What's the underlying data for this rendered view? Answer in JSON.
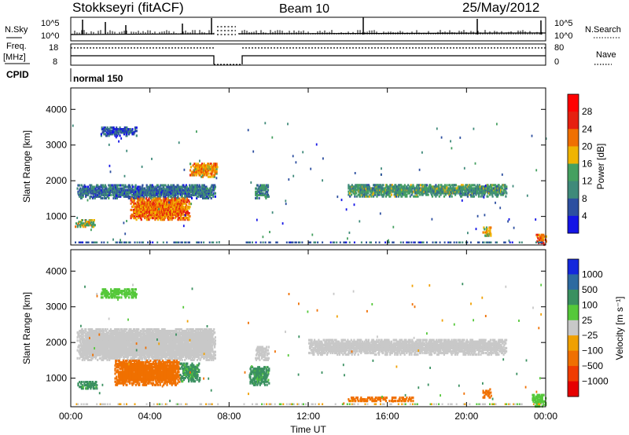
{
  "header": {
    "station": "Stokkseyri (fitACF)",
    "beam": "Beam 10",
    "date": "25/May/2012"
  },
  "strip": {
    "nsky_label": "N.Sky",
    "nsky_top_tick": "10^5",
    "nsky_bot_tick": "10^0",
    "nsearch_label": "N.Search",
    "freq_label": "Freq.",
    "freq_unit": "[MHz]",
    "freq_top_tick": "18",
    "freq_bot_tick": "8",
    "nave_label": "Nave",
    "nave_top_tick": "80",
    "nave_bot_tick": "0",
    "cpid_label": "CPID",
    "cpid_value": "normal 150"
  },
  "axes": {
    "xlabel": "Time UT",
    "x_ticks": [
      "00:00",
      "04:00",
      "08:00",
      "12:00",
      "16:00",
      "20:00",
      "00:00"
    ],
    "ylabel": "Slant Range [km]",
    "y_ticks": [
      "1000",
      "2000",
      "3000",
      "4000"
    ]
  },
  "power_scale": {
    "label": "Power [dB]",
    "ticks": [
      "4",
      "8",
      "12",
      "16",
      "20",
      "24",
      "28"
    ],
    "colors": [
      "#1414e6",
      "#2d4fa0",
      "#3f8a7a",
      "#45a060",
      "#f0b400",
      "#f07000",
      "#e62010",
      "#ff0000"
    ]
  },
  "velocity_scale": {
    "label": "Velocity [m s⁻¹]",
    "ticks": [
      "1000",
      "500",
      "100",
      "25",
      "−25",
      "−100",
      "−500",
      "−1000"
    ],
    "colors": [
      "#1428dc",
      "#2d6aa0",
      "#3a9060",
      "#55c83a",
      "#c8c8c8",
      "#f0a000",
      "#f07000",
      "#f03c00",
      "#e60000"
    ]
  },
  "chart_data": [
    {
      "type": "heatmap",
      "title": "Power [dB]",
      "xlabel": "Time UT",
      "ylabel": "Slant Range [km]",
      "xlim": [
        0,
        24
      ],
      "ylim": [
        200,
        4600
      ],
      "colorbar": {
        "label": "Power [dB]",
        "range": [
          0,
          32
        ]
      },
      "echo_regions": [
        {
          "t0": 0.3,
          "t1": 7.3,
          "r0": 1500,
          "r1": 1900,
          "value": 8
        },
        {
          "t0": 3.0,
          "t1": 6.0,
          "r0": 900,
          "r1": 1500,
          "value": 22
        },
        {
          "t0": 6.0,
          "t1": 7.4,
          "r0": 2100,
          "r1": 2500,
          "value": 20
        },
        {
          "t0": 1.5,
          "t1": 3.3,
          "r0": 3250,
          "r1": 3500,
          "value": 6
        },
        {
          "t0": 0.2,
          "t1": 1.2,
          "r0": 700,
          "r1": 900,
          "value": 16
        },
        {
          "t0": 9.3,
          "t1": 10.0,
          "r0": 1500,
          "r1": 1900,
          "value": 10
        },
        {
          "t0": 14.0,
          "t1": 22.0,
          "r0": 1550,
          "r1": 1900,
          "value": 12
        },
        {
          "t0": 20.8,
          "t1": 21.2,
          "r0": 450,
          "r1": 700,
          "value": 18
        },
        {
          "t0": 23.5,
          "t1": 24.0,
          "r0": 200,
          "r1": 500,
          "value": 22
        }
      ]
    },
    {
      "type": "heatmap",
      "title": "Velocity [m s⁻¹]",
      "xlabel": "Time UT",
      "ylabel": "Slant Range [km]",
      "xlim": [
        0,
        24
      ],
      "ylim": [
        200,
        4600
      ],
      "colorbar": {
        "label": "Velocity [m s⁻¹]",
        "levels": [
          1000,
          500,
          100,
          25,
          -25,
          -100,
          -500,
          -1000
        ]
      },
      "echo_regions": [
        {
          "t0": 0.3,
          "t1": 7.3,
          "r0": 1500,
          "r1": 2400,
          "value": 0
        },
        {
          "t0": 2.2,
          "t1": 5.5,
          "r0": 800,
          "r1": 1500,
          "value": -300
        },
        {
          "t0": 5.5,
          "t1": 6.5,
          "r0": 900,
          "r1": 1400,
          "value": 150
        },
        {
          "t0": 0.3,
          "t1": 1.3,
          "r0": 700,
          "r1": 900,
          "value": 150
        },
        {
          "t0": 1.5,
          "t1": 3.3,
          "r0": 3250,
          "r1": 3500,
          "value": 60
        },
        {
          "t0": 9.0,
          "t1": 10.0,
          "r0": 800,
          "r1": 1300,
          "value": 150
        },
        {
          "t0": 9.3,
          "t1": 10.0,
          "r0": 1500,
          "r1": 1900,
          "value": 0
        },
        {
          "t0": 12.0,
          "t1": 22.0,
          "r0": 1650,
          "r1": 2100,
          "value": 0
        },
        {
          "t0": 14.0,
          "t1": 17.3,
          "r0": 350,
          "r1": 450,
          "value": -200
        },
        {
          "t0": 20.8,
          "t1": 21.2,
          "r0": 450,
          "r1": 700,
          "value": -300
        },
        {
          "t0": 23.3,
          "t1": 24.0,
          "r0": 200,
          "r1": 550,
          "value": 60
        }
      ]
    }
  ]
}
